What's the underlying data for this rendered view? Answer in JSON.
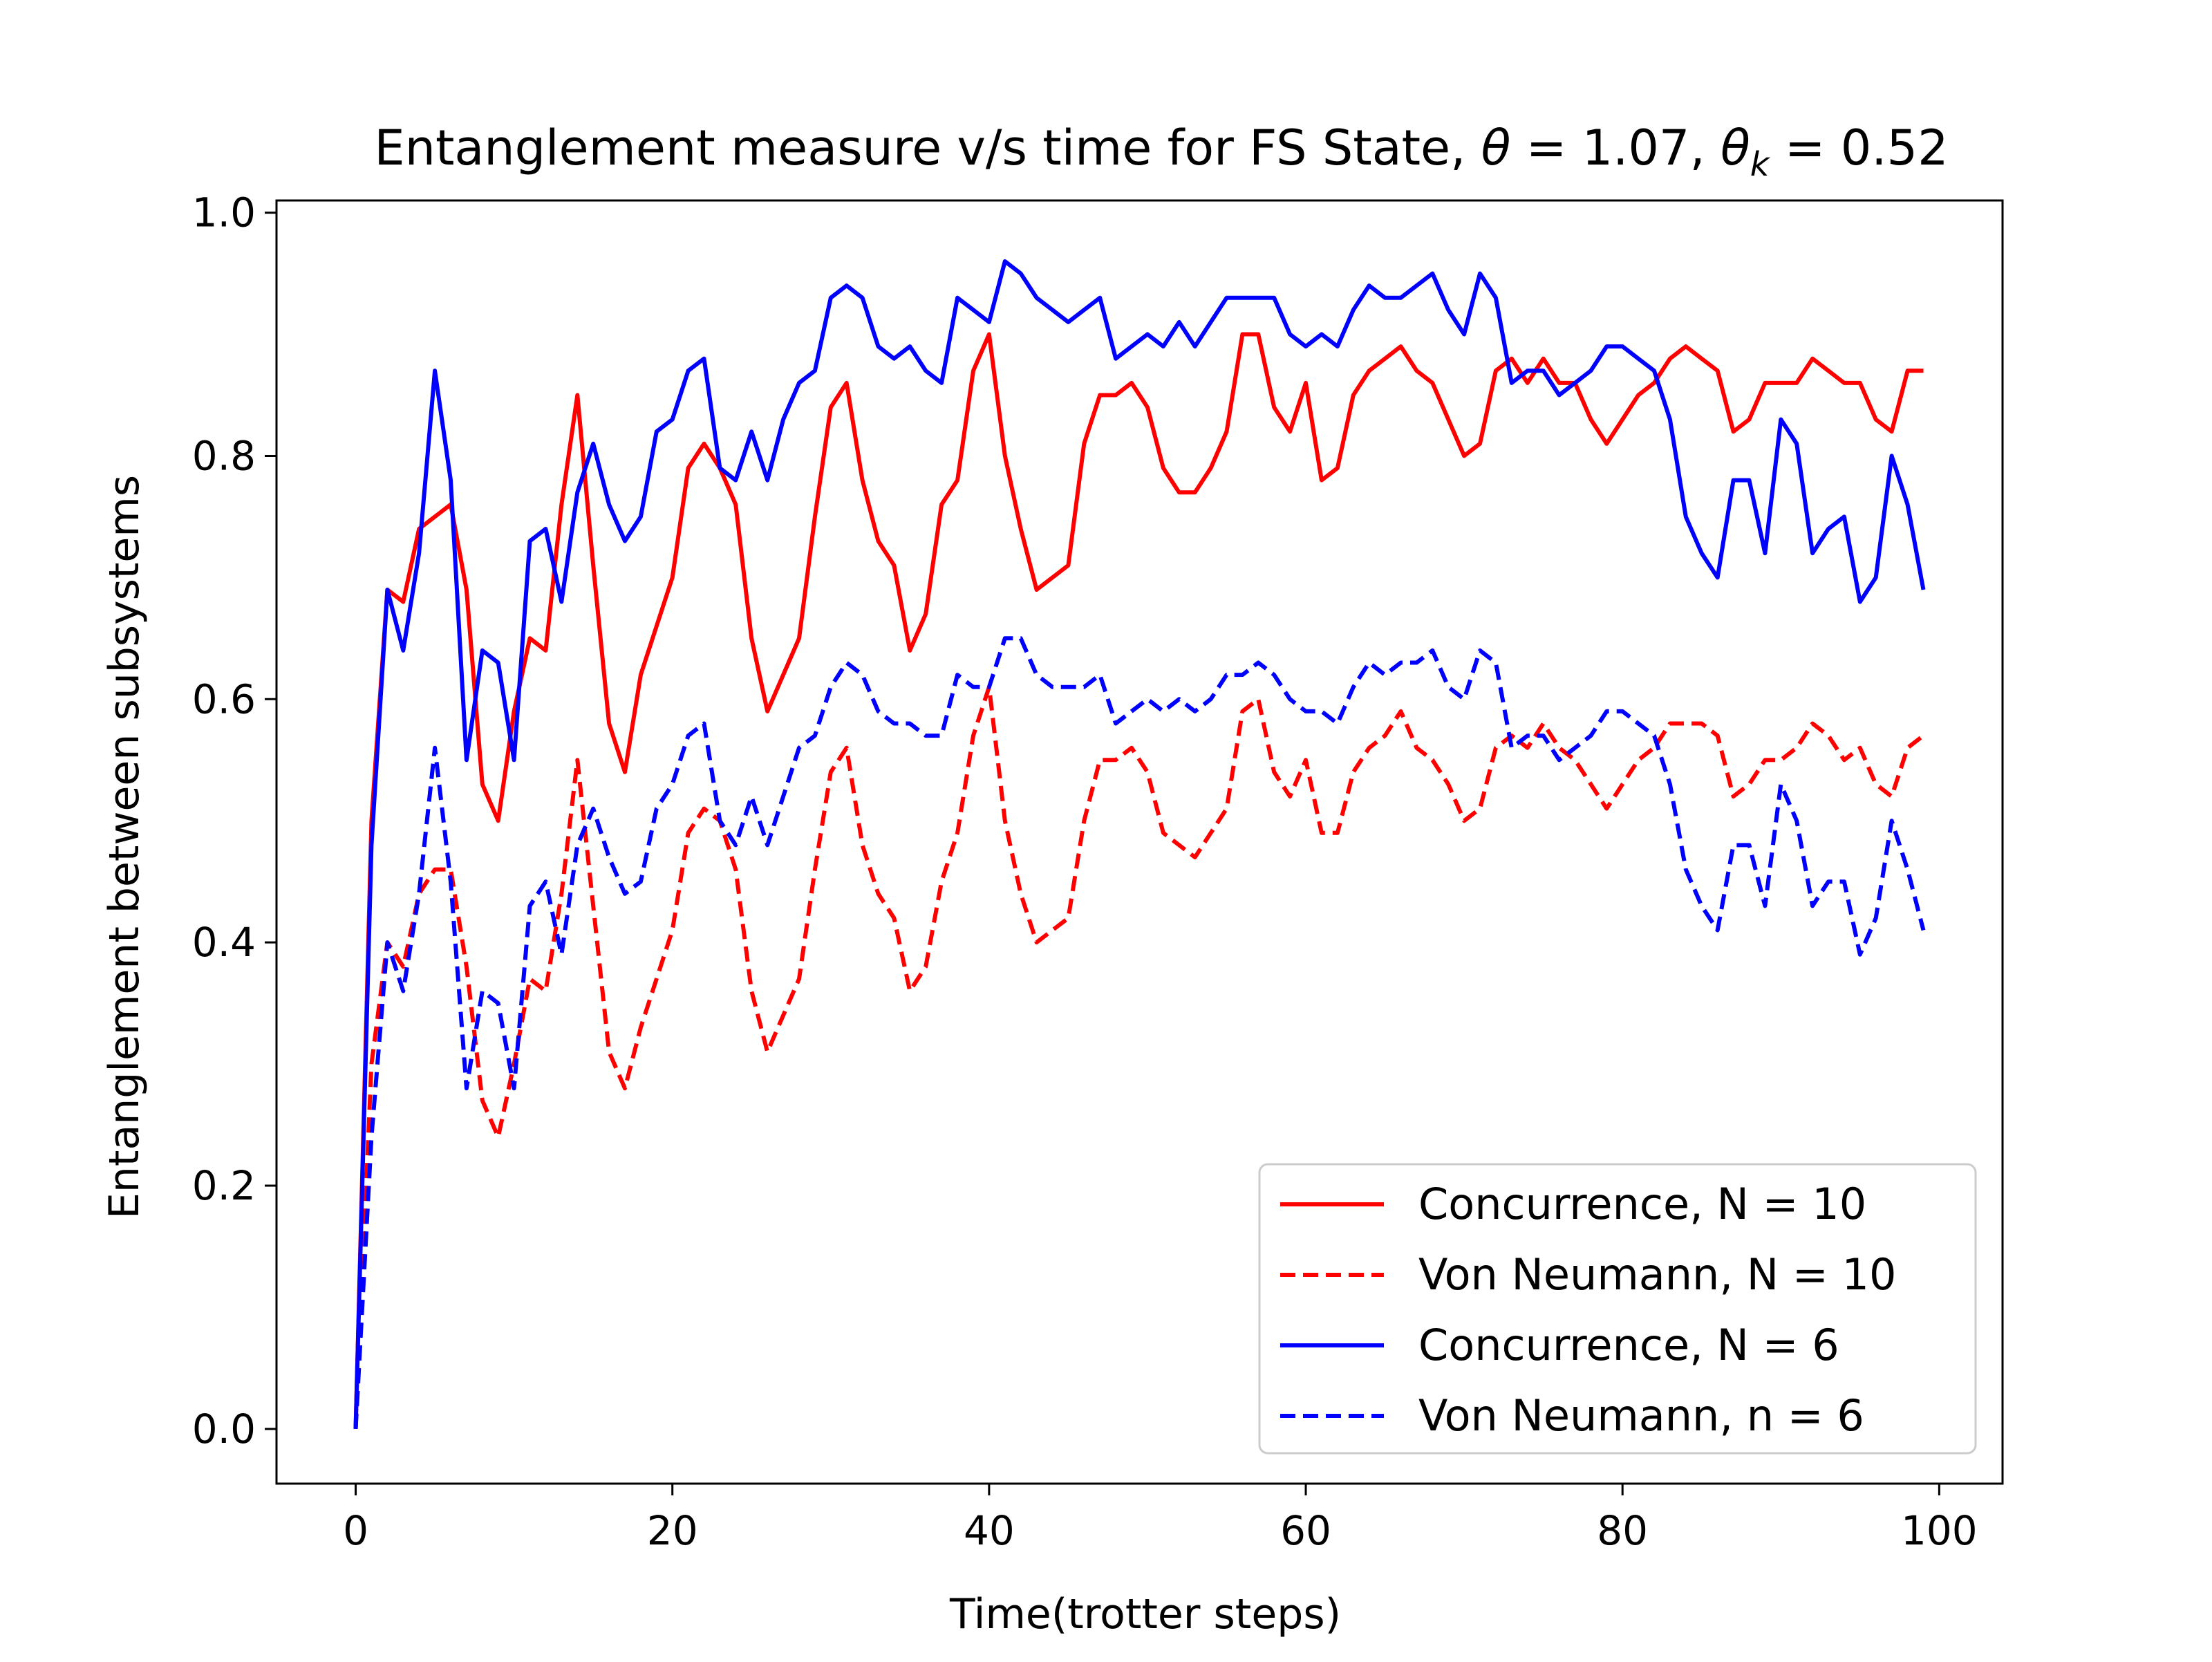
{
  "chart_data": {
    "type": "line",
    "title": "Entanglement measure v/s time for FS State, θ = 1.07,  θk = 0.52",
    "title_parts": {
      "main": "Entanglement measure v/s time for FS State, ",
      "theta_symbol": "θ",
      "theta_value": " = 1.07,  ",
      "theta_k_symbol": "θ",
      "theta_k_subscript": "k",
      "theta_k_value": " = 0.52"
    },
    "xlabel": "Time(trotter steps)",
    "ylabel": "Entanglement between subsystems",
    "xlim": [
      -5,
      104
    ],
    "ylim": [
      -0.045,
      1.01
    ],
    "xticks": [
      0,
      20,
      40,
      60,
      80,
      100
    ],
    "xtick_labels": [
      "0",
      "20",
      "40",
      "60",
      "80",
      "100"
    ],
    "yticks": [
      0.0,
      0.2,
      0.4,
      0.6,
      0.8,
      1.0
    ],
    "ytick_labels": [
      "0.0",
      "0.2",
      "0.4",
      "0.6",
      "0.8",
      "1.0"
    ],
    "grid": false,
    "legend_position": "lower-right",
    "x": [
      0,
      1,
      2,
      3,
      4,
      5,
      6,
      7,
      8,
      9,
      10,
      11,
      12,
      13,
      14,
      15,
      16,
      17,
      18,
      19,
      20,
      21,
      22,
      23,
      24,
      25,
      26,
      27,
      28,
      29,
      30,
      31,
      32,
      33,
      34,
      35,
      36,
      37,
      38,
      39,
      40,
      41,
      42,
      43,
      44,
      45,
      46,
      47,
      48,
      49,
      50,
      51,
      52,
      53,
      54,
      55,
      56,
      57,
      58,
      59,
      60,
      61,
      62,
      63,
      64,
      65,
      66,
      67,
      68,
      69,
      70,
      71,
      72,
      73,
      74,
      75,
      76,
      77,
      78,
      79,
      80,
      81,
      82,
      83,
      84,
      85,
      86,
      87,
      88,
      89,
      90,
      91,
      92,
      93,
      94,
      95,
      96,
      97,
      98,
      99
    ],
    "series": [
      {
        "name": "Concurrence, N = 10",
        "color": "#ff0000",
        "dash": "solid",
        "values": [
          0.0,
          0.5,
          0.69,
          0.68,
          0.74,
          0.75,
          0.76,
          0.69,
          0.53,
          0.5,
          0.59,
          0.65,
          0.64,
          0.76,
          0.85,
          0.71,
          0.58,
          0.54,
          0.62,
          0.66,
          0.7,
          0.79,
          0.81,
          0.79,
          0.76,
          0.65,
          0.59,
          0.62,
          0.65,
          0.75,
          0.84,
          0.86,
          0.78,
          0.73,
          0.71,
          0.64,
          0.67,
          0.76,
          0.78,
          0.87,
          0.9,
          0.8,
          0.74,
          0.69,
          0.7,
          0.71,
          0.81,
          0.85,
          0.85,
          0.86,
          0.84,
          0.79,
          0.77,
          0.77,
          0.79,
          0.82,
          0.9,
          0.9,
          0.84,
          0.82,
          0.86,
          0.78,
          0.79,
          0.85,
          0.87,
          0.88,
          0.89,
          0.87,
          0.86,
          0.83,
          0.8,
          0.81,
          0.87,
          0.88,
          0.86,
          0.88,
          0.86,
          0.86,
          0.83,
          0.81,
          0.83,
          0.85,
          0.86,
          0.88,
          0.89,
          0.88,
          0.87,
          0.82,
          0.83,
          0.86,
          0.86,
          0.86,
          0.88,
          0.87,
          0.86,
          0.86,
          0.83,
          0.82,
          0.87,
          0.87
        ]
      },
      {
        "name": "Von Neumann, N = 10",
        "color": "#ff0000",
        "dash": "dashed",
        "values": [
          0.0,
          0.3,
          0.4,
          0.38,
          0.44,
          0.46,
          0.46,
          0.38,
          0.27,
          0.24,
          0.3,
          0.37,
          0.36,
          0.44,
          0.55,
          0.43,
          0.31,
          0.28,
          0.33,
          0.37,
          0.41,
          0.49,
          0.51,
          0.5,
          0.46,
          0.36,
          0.31,
          0.34,
          0.37,
          0.46,
          0.54,
          0.56,
          0.48,
          0.44,
          0.42,
          0.36,
          0.38,
          0.45,
          0.49,
          0.57,
          0.61,
          0.5,
          0.44,
          0.4,
          0.41,
          0.42,
          0.5,
          0.55,
          0.55,
          0.56,
          0.54,
          0.49,
          0.48,
          0.47,
          0.49,
          0.51,
          0.59,
          0.6,
          0.54,
          0.52,
          0.55,
          0.49,
          0.49,
          0.54,
          0.56,
          0.57,
          0.59,
          0.56,
          0.55,
          0.53,
          0.5,
          0.51,
          0.56,
          0.57,
          0.56,
          0.58,
          0.56,
          0.55,
          0.53,
          0.51,
          0.53,
          0.55,
          0.56,
          0.58,
          0.58,
          0.58,
          0.57,
          0.52,
          0.53,
          0.55,
          0.55,
          0.56,
          0.58,
          0.57,
          0.55,
          0.56,
          0.53,
          0.52,
          0.56,
          0.57
        ]
      },
      {
        "name": "Concurrence, N = 6",
        "color": "#0000ff",
        "dash": "solid",
        "values": [
          0.0,
          0.48,
          0.69,
          0.64,
          0.72,
          0.87,
          0.78,
          0.55,
          0.64,
          0.63,
          0.55,
          0.73,
          0.74,
          0.68,
          0.77,
          0.81,
          0.76,
          0.73,
          0.75,
          0.82,
          0.83,
          0.87,
          0.88,
          0.79,
          0.78,
          0.82,
          0.78,
          0.83,
          0.86,
          0.87,
          0.93,
          0.94,
          0.93,
          0.89,
          0.88,
          0.89,
          0.87,
          0.86,
          0.93,
          0.92,
          0.91,
          0.96,
          0.95,
          0.93,
          0.92,
          0.91,
          0.92,
          0.93,
          0.88,
          0.89,
          0.9,
          0.89,
          0.91,
          0.89,
          0.91,
          0.93,
          0.93,
          0.93,
          0.93,
          0.9,
          0.89,
          0.9,
          0.89,
          0.92,
          0.94,
          0.93,
          0.93,
          0.94,
          0.95,
          0.92,
          0.9,
          0.95,
          0.93,
          0.86,
          0.87,
          0.87,
          0.85,
          0.86,
          0.87,
          0.89,
          0.89,
          0.88,
          0.87,
          0.83,
          0.75,
          0.72,
          0.7,
          0.78,
          0.78,
          0.72,
          0.83,
          0.81,
          0.72,
          0.74,
          0.75,
          0.68,
          0.7,
          0.8,
          0.76,
          0.69
        ]
      },
      {
        "name": "Von Neumann, n = 6",
        "color": "#0000ff",
        "dash": "dashed",
        "values": [
          0.0,
          0.24,
          0.4,
          0.36,
          0.44,
          0.56,
          0.45,
          0.28,
          0.36,
          0.35,
          0.28,
          0.43,
          0.45,
          0.39,
          0.48,
          0.51,
          0.47,
          0.44,
          0.45,
          0.51,
          0.53,
          0.57,
          0.58,
          0.5,
          0.48,
          0.52,
          0.48,
          0.52,
          0.56,
          0.57,
          0.61,
          0.63,
          0.62,
          0.59,
          0.58,
          0.58,
          0.57,
          0.57,
          0.62,
          0.61,
          0.61,
          0.65,
          0.65,
          0.62,
          0.61,
          0.61,
          0.61,
          0.62,
          0.58,
          0.59,
          0.6,
          0.59,
          0.6,
          0.59,
          0.6,
          0.62,
          0.62,
          0.63,
          0.62,
          0.6,
          0.59,
          0.59,
          0.58,
          0.61,
          0.63,
          0.62,
          0.63,
          0.63,
          0.64,
          0.61,
          0.6,
          0.64,
          0.63,
          0.56,
          0.57,
          0.57,
          0.55,
          0.56,
          0.57,
          0.59,
          0.59,
          0.58,
          0.57,
          0.53,
          0.46,
          0.43,
          0.41,
          0.48,
          0.48,
          0.43,
          0.53,
          0.5,
          0.43,
          0.45,
          0.45,
          0.39,
          0.42,
          0.5,
          0.46,
          0.41
        ]
      }
    ]
  }
}
